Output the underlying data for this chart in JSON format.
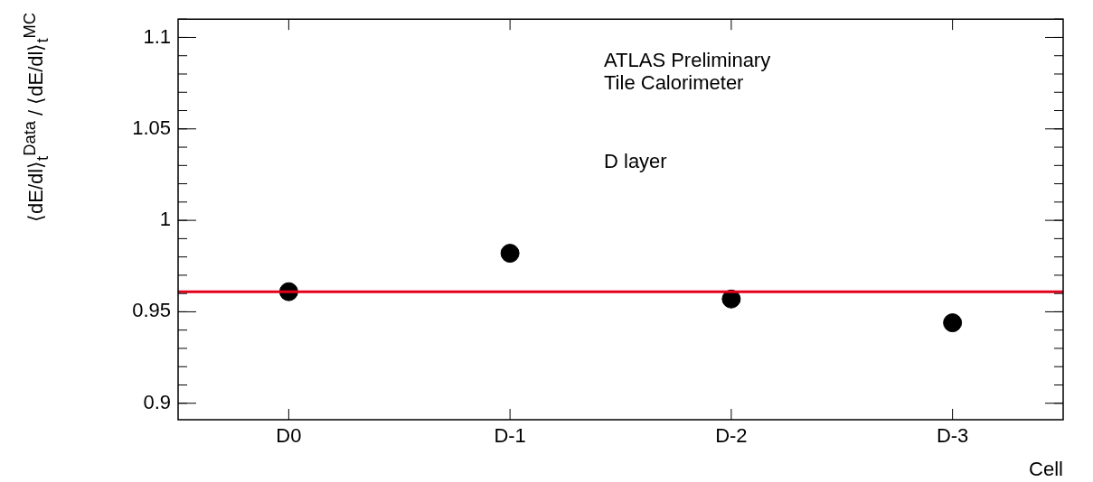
{
  "chart_data": {
    "type": "scatter",
    "xlabel": "Cell",
    "ylabel": "⟨dE/dl⟩$_{t}$$^{Data}$ / ⟨dE/dl⟩$_{t}$$^{MC}$",
    "categories": [
      "D0",
      "D-1",
      "D-2",
      "D-3"
    ],
    "series": [
      {
        "color": "#000000",
        "values": [
          0.961,
          0.982,
          0.957,
          0.944
        ]
      }
    ],
    "ylim": [
      0.891,
      1.11
    ],
    "yticks": [
      0.9,
      0.95,
      1,
      1.05,
      1.1
    ],
    "grid": false,
    "legend": false,
    "marker": "circle",
    "ref_lines": [
      {
        "axis": "y",
        "value": 0.961,
        "color": "#e3001b"
      }
    ],
    "annotations": [
      "ATLAS Preliminary",
      "Tile Calorimeter",
      "D layer"
    ]
  }
}
